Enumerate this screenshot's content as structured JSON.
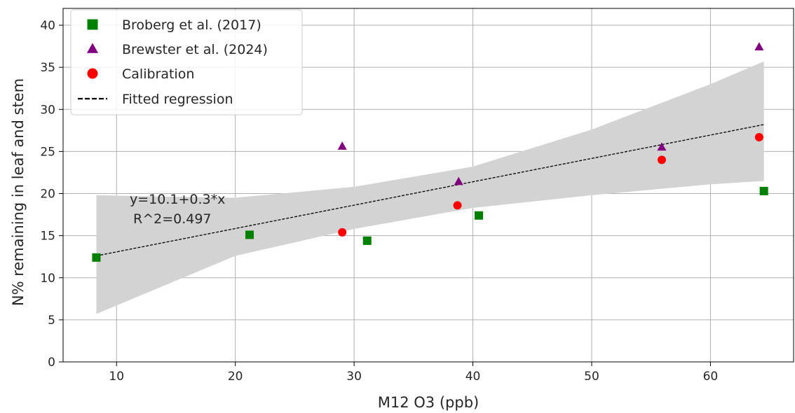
{
  "chart_data": {
    "type": "scatter",
    "title": "",
    "xlabel": "M12 O3 (ppb)",
    "ylabel": "N% remaining in leaf and stem",
    "xlim": [
      5.5,
      67
    ],
    "ylim": [
      0,
      42
    ],
    "xticks": [
      10,
      20,
      30,
      40,
      50,
      60
    ],
    "yticks": [
      0,
      5,
      10,
      15,
      20,
      25,
      30,
      35,
      40
    ],
    "grid": true,
    "legend_position": "upper-left",
    "series": [
      {
        "name": "Broberg et al. (2017)",
        "marker": "square",
        "color": "#008000",
        "points": [
          [
            8.3,
            12.4
          ],
          [
            21.2,
            15.1
          ],
          [
            31.1,
            14.4
          ],
          [
            40.5,
            17.4
          ],
          [
            64.5,
            20.3
          ]
        ]
      },
      {
        "name": "Brewster et al. (2024)",
        "marker": "triangle",
        "color": "#800080",
        "points": [
          [
            29.0,
            25.6
          ],
          [
            38.8,
            21.4
          ],
          [
            55.9,
            25.5
          ],
          [
            64.1,
            37.4
          ]
        ]
      },
      {
        "name": "Calibration",
        "marker": "circle",
        "color": "#ff0000",
        "points": [
          [
            29.0,
            15.4
          ],
          [
            38.7,
            18.6
          ],
          [
            55.9,
            24.0
          ],
          [
            64.1,
            26.7
          ]
        ]
      }
    ],
    "regression": {
      "name": "Fitted regression",
      "intercept": 10.1,
      "slope": 0.3,
      "x_range": [
        8.3,
        64.5
      ],
      "line_endpoints": [
        [
          8.3,
          12.6
        ],
        [
          64.5,
          28.2
        ]
      ],
      "color": "#000000",
      "style": "dashed",
      "confidence_band": {
        "color": "#d3d3d3",
        "x": [
          8.3,
          20,
          30,
          40,
          50,
          60,
          64.5
        ],
        "lower": [
          5.7,
          12.6,
          15.8,
          18.3,
          19.8,
          21.1,
          21.5
        ],
        "upper": [
          19.8,
          19.5,
          20.8,
          23.2,
          27.6,
          33.0,
          35.7
        ]
      },
      "equation_text": "y=10.1+0.3*x",
      "r2_text": "R^2=0.497"
    }
  }
}
